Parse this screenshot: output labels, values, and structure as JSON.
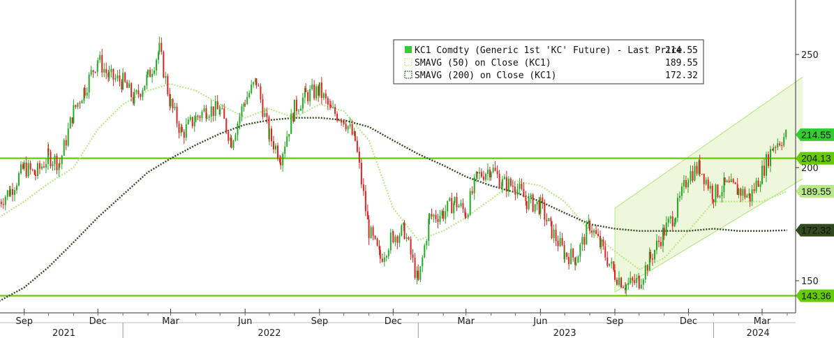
{
  "chart_data": {
    "type": "line",
    "title": "",
    "xlabel": "",
    "ylabel": "",
    "ylim": [
      140,
      260
    ],
    "y_ticks": [
      150,
      200,
      250
    ],
    "x_month_labels": [
      "Sep",
      "Dec",
      "Mar",
      "Jun",
      "Sep",
      "Dec",
      "Mar",
      "Jun",
      "Sep",
      "Dec",
      "Mar"
    ],
    "x_year_labels": [
      "2021",
      "2022",
      "2023",
      "2024"
    ],
    "grid": false,
    "legend_position": "top-center",
    "legend": [
      {
        "label": "KC1 Comdty (Generic 1st 'KC' Future) - Last Price",
        "value": "214.55",
        "color": "#33cc33"
      },
      {
        "label": "SMAVG (50)  on Close (KC1)",
        "value": "189.55",
        "color": "#b8e986"
      },
      {
        "label": "SMAVG (200)  on Close (KC1)",
        "value": "172.32",
        "color": "#2e4a1e"
      }
    ],
    "horizontal_lines": [
      {
        "value": 204.13,
        "label": "204.13",
        "color": "#66cc00"
      },
      {
        "value": 143.36,
        "label": "143.36",
        "color": "#66cc00"
      }
    ],
    "value_tags": [
      {
        "value": 214.55,
        "label": "214.55",
        "color": "#33cc33"
      },
      {
        "value": 189.55,
        "label": "189.55",
        "color": "#b8e986"
      },
      {
        "value": 172.32,
        "label": "172.32",
        "color": "#2e4a1e"
      }
    ],
    "series": [
      {
        "name": "KC1 Comdty (Generic 1st 'KC' Future) - Last Price",
        "kind": "candlestick",
        "up_color": "#22aa22",
        "down_color": "#dd2222",
        "x": [
          "2021-08-01",
          "2021-08-15",
          "2021-09-01",
          "2021-09-15",
          "2021-10-01",
          "2021-10-15",
          "2021-11-01",
          "2021-11-15",
          "2021-12-01",
          "2021-12-15",
          "2022-01-01",
          "2022-01-15",
          "2022-02-01",
          "2022-02-15",
          "2022-03-01",
          "2022-03-15",
          "2022-04-01",
          "2022-04-15",
          "2022-05-01",
          "2022-05-15",
          "2022-06-01",
          "2022-06-15",
          "2022-07-01",
          "2022-07-15",
          "2022-08-01",
          "2022-08-15",
          "2022-09-01",
          "2022-09-15",
          "2022-10-01",
          "2022-10-15",
          "2022-11-01",
          "2022-11-15",
          "2022-12-01",
          "2022-12-15",
          "2023-01-01",
          "2023-01-15",
          "2023-02-01",
          "2023-02-15",
          "2023-03-01",
          "2023-03-15",
          "2023-04-01",
          "2023-04-15",
          "2023-05-01",
          "2023-05-15",
          "2023-06-01",
          "2023-06-15",
          "2023-07-01",
          "2023-07-15",
          "2023-08-01",
          "2023-08-15",
          "2023-09-01",
          "2023-09-15",
          "2023-10-01",
          "2023-10-15",
          "2023-11-01",
          "2023-11-15",
          "2023-12-01",
          "2023-12-15",
          "2024-01-01",
          "2024-01-15",
          "2024-02-01",
          "2024-02-15",
          "2024-03-01",
          "2024-03-15",
          "2024-04-01"
        ],
        "close": [
          185,
          190,
          200,
          197,
          205,
          202,
          225,
          235,
          248,
          240,
          238,
          230,
          240,
          252,
          228,
          215,
          222,
          226,
          225,
          212,
          230,
          238,
          214,
          205,
          226,
          232,
          234,
          225,
          222,
          212,
          172,
          160,
          170,
          172,
          149,
          178,
          180,
          185,
          180,
          196,
          200,
          193,
          192,
          185,
          183,
          172,
          162,
          160,
          175,
          165,
          153,
          148,
          150,
          160,
          172,
          180,
          197,
          200,
          188,
          192,
          190,
          187,
          198,
          210,
          214.55
        ]
      },
      {
        "name": "SMAVG (50)  on Close (KC1)",
        "kind": "line",
        "x": [
          "2021-08-01",
          "2021-09-01",
          "2021-10-01",
          "2021-11-01",
          "2021-12-01",
          "2022-01-01",
          "2022-02-01",
          "2022-03-01",
          "2022-04-01",
          "2022-05-01",
          "2022-06-01",
          "2022-07-01",
          "2022-08-01",
          "2022-09-01",
          "2022-10-01",
          "2022-11-01",
          "2022-12-01",
          "2023-01-01",
          "2023-02-01",
          "2023-03-01",
          "2023-04-01",
          "2023-05-01",
          "2023-06-01",
          "2023-07-01",
          "2023-08-01",
          "2023-09-01",
          "2023-10-01",
          "2023-11-01",
          "2023-12-01",
          "2024-01-01",
          "2024-02-01",
          "2024-03-01",
          "2024-04-01"
        ],
        "values": [
          178,
          185,
          193,
          200,
          217,
          228,
          234,
          237,
          234,
          228,
          222,
          226,
          222,
          228,
          225,
          212,
          182,
          168,
          172,
          178,
          186,
          194,
          192,
          185,
          172,
          163,
          155,
          160,
          172,
          185,
          185,
          185,
          189.55
        ]
      },
      {
        "name": "SMAVG (200)  on Close (KC1)",
        "kind": "line",
        "x": [
          "2021-08-01",
          "2021-09-01",
          "2021-10-01",
          "2021-11-01",
          "2021-12-01",
          "2022-01-01",
          "2022-02-01",
          "2022-03-01",
          "2022-04-01",
          "2022-05-01",
          "2022-06-01",
          "2022-07-01",
          "2022-08-01",
          "2022-09-01",
          "2022-10-01",
          "2022-11-01",
          "2022-12-01",
          "2023-01-01",
          "2023-02-01",
          "2023-03-01",
          "2023-04-01",
          "2023-05-01",
          "2023-06-01",
          "2023-07-01",
          "2023-08-01",
          "2023-09-01",
          "2023-10-01",
          "2023-11-01",
          "2023-12-01",
          "2024-01-01",
          "2024-02-01",
          "2024-03-01",
          "2024-04-01"
        ],
        "values": [
          141,
          147,
          156,
          167,
          178,
          188,
          198,
          204,
          210,
          215,
          219,
          221,
          222,
          222,
          221,
          218,
          212,
          206,
          201,
          196,
          192,
          189,
          185,
          180,
          175,
          173,
          172,
          172,
          172,
          173,
          172,
          172,
          172.32
        ]
      }
    ],
    "channel": {
      "lower": [
        {
          "x": "2023-09-01",
          "y": 145
        },
        {
          "x": "2024-04-20",
          "y": 195
        }
      ],
      "upper": [
        {
          "x": "2023-09-01",
          "y": 182
        },
        {
          "x": "2024-04-20",
          "y": 240
        }
      ],
      "fill": "#eef6dc",
      "line_color": "#b8e986"
    }
  }
}
